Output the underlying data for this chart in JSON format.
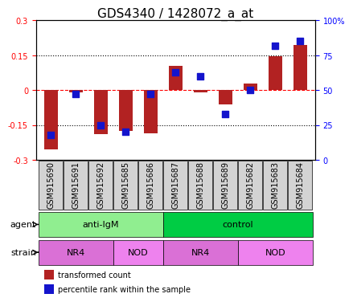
{
  "title": "GDS4340 / 1428072_a_at",
  "samples": [
    "GSM915690",
    "GSM915691",
    "GSM915692",
    "GSM915685",
    "GSM915686",
    "GSM915687",
    "GSM915688",
    "GSM915689",
    "GSM915682",
    "GSM915683",
    "GSM915684"
  ],
  "red_values": [
    -0.255,
    -0.01,
    -0.19,
    -0.175,
    -0.185,
    0.105,
    -0.01,
    -0.06,
    0.03,
    0.145,
    0.195
  ],
  "blue_values": [
    18,
    47,
    25,
    20,
    47,
    63,
    60,
    33,
    50,
    82,
    85
  ],
  "ylim_left": [
    -0.3,
    0.3
  ],
  "ylim_right": [
    0,
    100
  ],
  "yticks_left": [
    -0.3,
    -0.15,
    0,
    0.15,
    0.3
  ],
  "yticks_right": [
    0,
    25,
    50,
    75,
    100
  ],
  "ytick_labels_left": [
    "-0.3",
    "-0.15",
    "0",
    "0.15",
    "0.3"
  ],
  "ytick_labels_right": [
    "0",
    "25",
    "50",
    "75",
    "100%"
  ],
  "hlines": [
    -0.15,
    0,
    0.15
  ],
  "hline_styles": [
    "dotted",
    "dashed",
    "dotted"
  ],
  "hline_colors": [
    "black",
    "red",
    "black"
  ],
  "agent_labels": [
    {
      "label": "anti-IgM",
      "start": 0,
      "end": 5,
      "color": "#90EE90"
    },
    {
      "label": "control",
      "start": 5,
      "end": 11,
      "color": "#00CC44"
    }
  ],
  "strain_labels": [
    {
      "label": "NR4",
      "start": 0,
      "end": 3,
      "color": "#DA70D6"
    },
    {
      "label": "NOD",
      "start": 3,
      "end": 5,
      "color": "#EE82EE"
    },
    {
      "label": "NR4",
      "start": 5,
      "end": 8,
      "color": "#DA70D6"
    },
    {
      "label": "NOD",
      "start": 8,
      "end": 11,
      "color": "#EE82EE"
    }
  ],
  "red_color": "#B22222",
  "blue_color": "#1414CC",
  "bar_width": 0.55,
  "blue_square_size": 35,
  "tick_label_size": 7,
  "group_label_fontsize": 8,
  "title_fontsize": 11,
  "sample_box_color": "#D3D3D3"
}
